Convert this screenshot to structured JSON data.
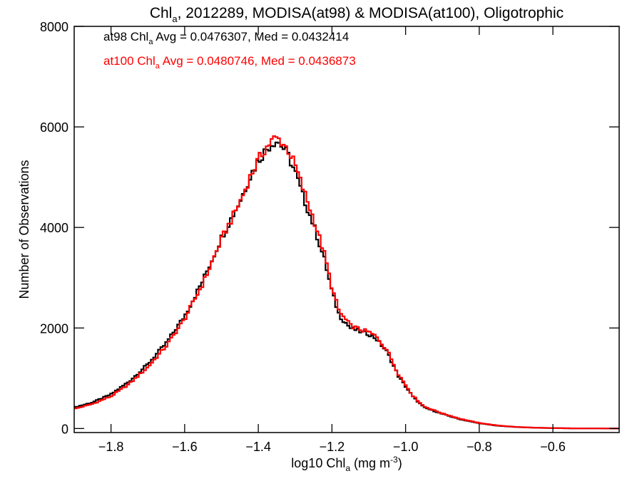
{
  "chart_data": {
    "type": "line",
    "title": {
      "base": "Chl",
      "sub": "a",
      "rest": ", 2012289, MODISA(at98) & MODISA(at100), Oligotrophic"
    },
    "xlabel": {
      "pre": "log10 Chl",
      "sub": "a",
      "mid": " (mg m",
      "sup": "-3",
      "post": ")"
    },
    "ylabel": "Number of Observations",
    "xlim": [
      -1.9,
      -0.42
    ],
    "ylim": [
      -80,
      8000
    ],
    "xticks": [
      -1.8,
      -1.6,
      -1.4,
      -1.2,
      -1.0,
      -0.8,
      -0.6
    ],
    "xtick_labels": [
      "−1.8",
      "−1.6",
      "−1.4",
      "−1.2",
      "−1.0",
      "−0.8",
      "−0.6"
    ],
    "yticks": [
      0,
      2000,
      4000,
      6000,
      8000
    ],
    "ytick_labels": [
      "0",
      "2000",
      "4000",
      "6000",
      "8000"
    ],
    "annotations": [
      {
        "series": "at98",
        "color": "#000000",
        "pre": "at98 Chl",
        "sub": "a",
        "post": " Avg = 0.0476307, Med = 0.0432414"
      },
      {
        "series": "at100",
        "color": "#ff0000",
        "pre": "at100 Chl",
        "sub": "a",
        "post": " Avg = 0.0480746, Med = 0.0436873"
      }
    ],
    "series": [
      {
        "color": "#000000",
        "x": [
          -1.9,
          -1.85,
          -1.8,
          -1.75,
          -1.7,
          -1.65,
          -1.6,
          -1.55,
          -1.5,
          -1.45,
          -1.42,
          -1.4,
          -1.38,
          -1.36,
          -1.35,
          -1.34,
          -1.32,
          -1.3,
          -1.28,
          -1.25,
          -1.22,
          -1.2,
          -1.18,
          -1.15,
          -1.12,
          -1.1,
          -1.08,
          -1.05,
          -1.02,
          -1.0,
          -0.98,
          -0.95,
          -0.9,
          -0.85,
          -0.8,
          -0.75,
          -0.7,
          -0.65,
          -0.6,
          -0.55,
          -0.5,
          -0.42
        ],
        "y": [
          420,
          520,
          680,
          940,
          1280,
          1700,
          2240,
          2950,
          3800,
          4520,
          5050,
          5330,
          5540,
          5700,
          5720,
          5660,
          5450,
          5100,
          4650,
          4050,
          3350,
          2720,
          2250,
          2000,
          1920,
          1880,
          1790,
          1520,
          1050,
          840,
          630,
          420,
          290,
          180,
          105,
          55,
          30,
          16,
          8,
          4,
          2,
          1
        ]
      },
      {
        "color": "#ff0000",
        "x": [
          -1.9,
          -1.85,
          -1.8,
          -1.75,
          -1.7,
          -1.65,
          -1.6,
          -1.55,
          -1.5,
          -1.45,
          -1.42,
          -1.4,
          -1.38,
          -1.36,
          -1.35,
          -1.34,
          -1.32,
          -1.3,
          -1.28,
          -1.25,
          -1.22,
          -1.2,
          -1.18,
          -1.15,
          -1.12,
          -1.1,
          -1.08,
          -1.05,
          -1.02,
          -1.0,
          -0.98,
          -0.95,
          -0.9,
          -0.85,
          -0.8,
          -0.75,
          -0.7,
          -0.65,
          -0.6,
          -0.55,
          -0.5,
          -0.42
        ],
        "y": [
          390,
          490,
          640,
          890,
          1220,
          1640,
          2180,
          2890,
          3760,
          4500,
          5040,
          5340,
          5580,
          5750,
          5770,
          5730,
          5560,
          5240,
          4800,
          4180,
          3460,
          2800,
          2320,
          2050,
          1960,
          1920,
          1830,
          1560,
          1090,
          870,
          650,
          440,
          300,
          190,
          110,
          60,
          32,
          17,
          9,
          4,
          2,
          1
        ]
      }
    ]
  }
}
